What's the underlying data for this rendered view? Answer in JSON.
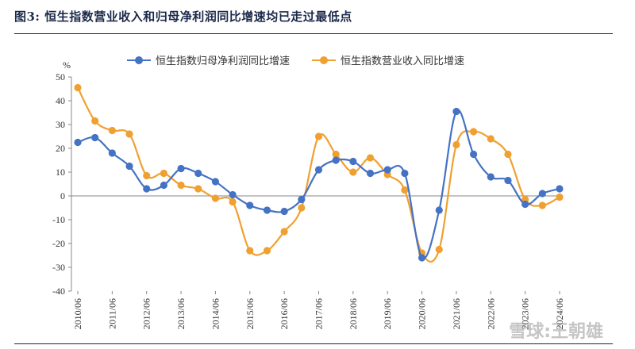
{
  "header": {
    "title": "图3:  恒生指数营业收入和归母净利润同比增速均已走过最低点"
  },
  "watermark": "雪球:王朝雄",
  "chart_data": {
    "type": "line",
    "ylabel": "%",
    "ylim": [
      -40,
      50
    ],
    "yticks": [
      -40,
      -30,
      -20,
      -10,
      0,
      10,
      20,
      30,
      40,
      50
    ],
    "x_tick_labels": [
      "2010/06",
      "2011/06",
      "2012/06",
      "2013/06",
      "2014/06",
      "2015/06",
      "2016/06",
      "2017/06",
      "2018/06",
      "2019/06",
      "2020/06",
      "2021/06",
      "2022/06",
      "2023/06",
      "2024/06"
    ],
    "legend": "top",
    "series": [
      {
        "name": "恒生指数归母净利润同比增速",
        "color": "#4472C4",
        "values": [
          22.5,
          24.5,
          18,
          12.5,
          3,
          4.5,
          11.5,
          9.5,
          6,
          0.5,
          -4,
          -6,
          -6.5,
          -1.5,
          11,
          15,
          14.5,
          9.5,
          11,
          9.5,
          -26,
          -6,
          35.5,
          17.5,
          8,
          6.5,
          -3.5,
          1,
          3
        ]
      },
      {
        "name": "恒生指数营业收入同比增速",
        "color": "#F0A030",
        "values": [
          45.5,
          31.5,
          27.5,
          26,
          8.5,
          9.5,
          4.5,
          3,
          -1,
          -2.5,
          -23,
          -23,
          -15,
          -5,
          25,
          17.5,
          10,
          16,
          9,
          2.5,
          -24,
          -22.5,
          21.5,
          27,
          24,
          17.5,
          -1.5,
          -4,
          -0.5
        ]
      }
    ]
  }
}
